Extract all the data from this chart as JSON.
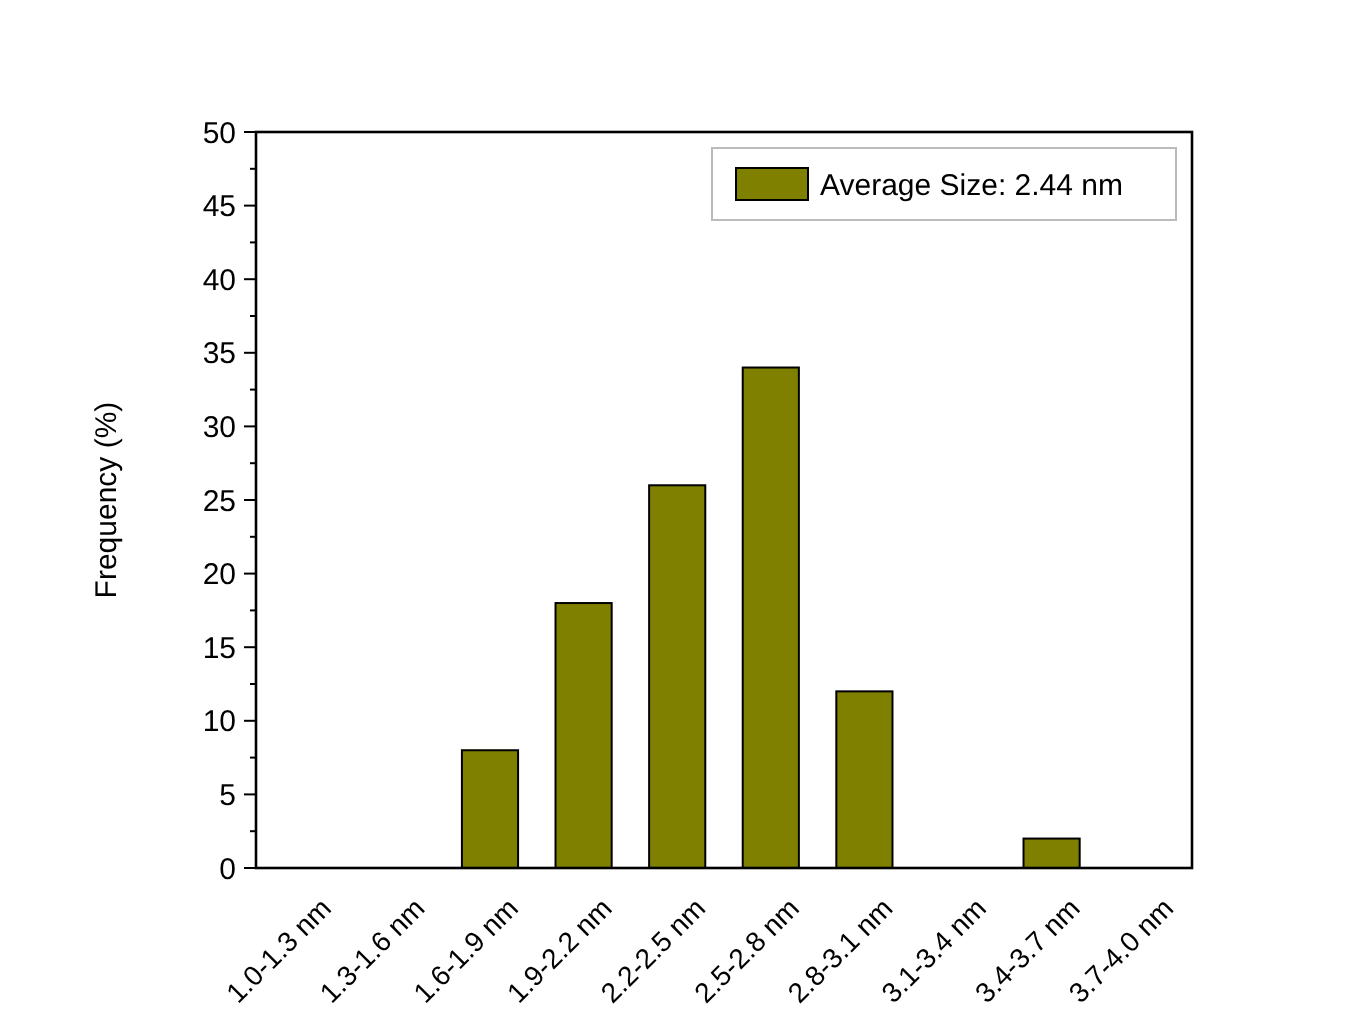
{
  "chart_data": {
    "type": "bar",
    "ylabel": "Frequency (%)",
    "categories": [
      "1.0-1.3 nm",
      "1.3-1.6 nm",
      "1.6-1.9 nm",
      "1.9-2.2 nm",
      "2.2-2.5 nm",
      "2.5-2.8 nm",
      "2.8-3.1 nm",
      "3.1-3.4 nm",
      "3.4-3.7 nm",
      "3.7-4.0 nm"
    ],
    "series": [
      {
        "name": "Average Size: 2.44 nm",
        "color": "#7f7f00",
        "values": [
          0,
          0,
          8,
          18,
          26,
          34,
          12,
          0,
          2,
          0
        ]
      }
    ],
    "ylim": [
      0,
      50
    ],
    "yticks": [
      0,
      5,
      10,
      15,
      20,
      25,
      30,
      35,
      40,
      45,
      50
    ],
    "grid": false,
    "legend": "top right"
  }
}
